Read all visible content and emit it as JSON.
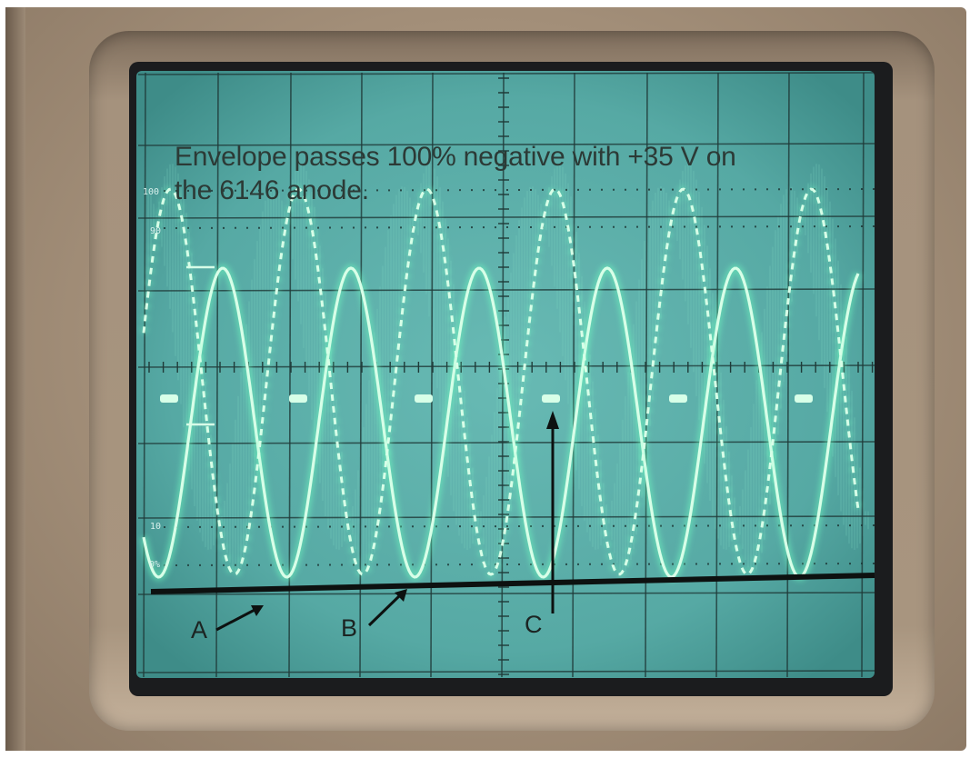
{
  "annotation": {
    "line1": "Envelope passes 100% negative with +35 V on",
    "line2": "the 6146 anode."
  },
  "graticule_scale": {
    "top": "100",
    "upper": "90",
    "lower": "10",
    "bottom": "0%"
  },
  "markers": {
    "a": "A",
    "b": "B",
    "c": "C"
  },
  "colors": {
    "screen": "#5fb2ac",
    "trace": "#d8ffe8",
    "trace_glow": "#6fffc0",
    "bezel": "#a8957f",
    "ink": "#111111"
  }
}
